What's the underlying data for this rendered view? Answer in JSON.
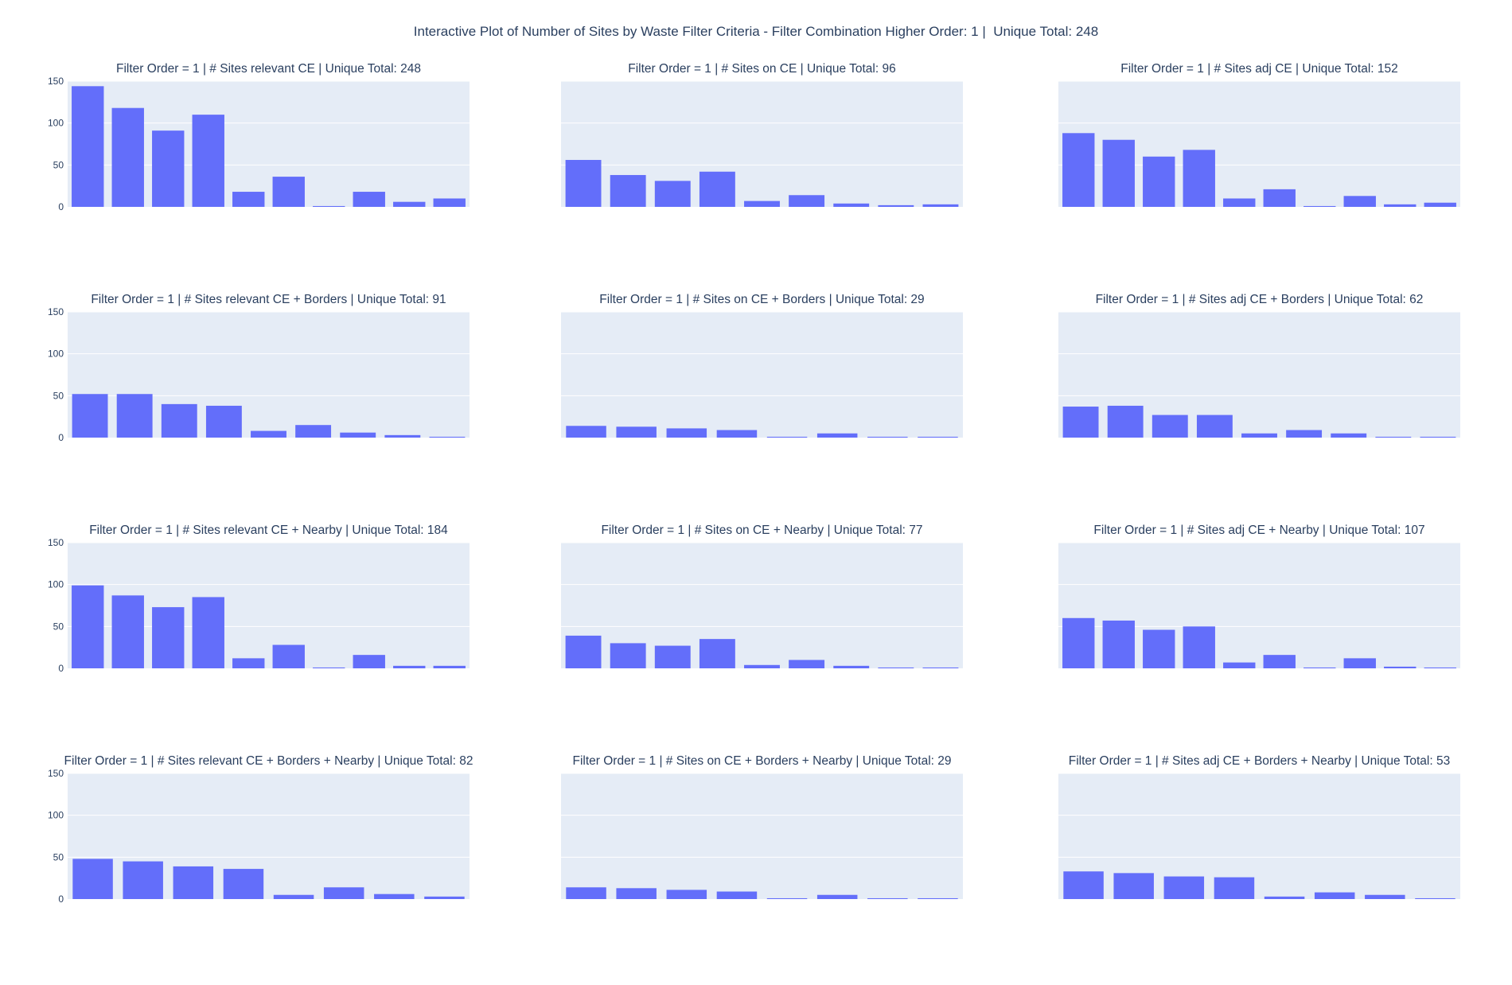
{
  "title": "Interactive Plot of Number of Sites by Waste Filter Criteria - Filter Combination Higher Order: 1 |  Unique Total: 248",
  "colors": {
    "bar": "#636efa",
    "plot_bg": "#e5ecf6",
    "grid": "#ffffff",
    "text": "#2a3f5f"
  },
  "chart_data": [
    {
      "type": "bar",
      "title": "Filter Order = 1 | # Sites relevant CE | Unique Total: 248",
      "ylim": [
        0,
        150
      ],
      "y_ticks": [
        "0",
        "50",
        "100",
        "150"
      ],
      "show_y_ticks": true,
      "grid": true,
      "values": [
        144,
        118,
        91,
        110,
        18,
        36,
        1,
        18,
        6,
        10
      ]
    },
    {
      "type": "bar",
      "title": "Filter Order = 1 | # Sites on CE | Unique Total: 96",
      "ylim": [
        0,
        150
      ],
      "y_ticks": [
        "0",
        "50",
        "100",
        "150"
      ],
      "show_y_ticks": false,
      "grid": true,
      "values": [
        56,
        38,
        31,
        42,
        7,
        14,
        4,
        2,
        3
      ]
    },
    {
      "type": "bar",
      "title": "Filter Order = 1 | # Sites adj CE | Unique Total: 152",
      "ylim": [
        0,
        150
      ],
      "y_ticks": [
        "0",
        "50",
        "100",
        "150"
      ],
      "show_y_ticks": false,
      "grid": true,
      "values": [
        88,
        80,
        60,
        68,
        10,
        21,
        1,
        13,
        3,
        5
      ]
    },
    {
      "type": "bar",
      "title": "Filter Order = 1 | # Sites relevant CE + Borders | Unique Total: 91",
      "ylim": [
        0,
        150
      ],
      "y_ticks": [
        "0",
        "50",
        "100",
        "150"
      ],
      "show_y_ticks": true,
      "grid": true,
      "values": [
        52,
        52,
        40,
        38,
        8,
        15,
        6,
        3,
        1
      ]
    },
    {
      "type": "bar",
      "title": "Filter Order = 1 | # Sites on CE + Borders | Unique Total: 29",
      "ylim": [
        0,
        150
      ],
      "y_ticks": [
        "0",
        "50",
        "100",
        "150"
      ],
      "show_y_ticks": false,
      "grid": true,
      "values": [
        14,
        13,
        11,
        9,
        1,
        5,
        1,
        1
      ]
    },
    {
      "type": "bar",
      "title": "Filter Order = 1 | # Sites adj CE + Borders | Unique Total: 62",
      "ylim": [
        0,
        150
      ],
      "y_ticks": [
        "0",
        "50",
        "100",
        "150"
      ],
      "show_y_ticks": false,
      "grid": true,
      "values": [
        37,
        38,
        27,
        27,
        5,
        9,
        5,
        1,
        1
      ]
    },
    {
      "type": "bar",
      "title": "Filter Order = 1 | # Sites relevant CE + Nearby | Unique Total: 184",
      "ylim": [
        0,
        150
      ],
      "y_ticks": [
        "0",
        "50",
        "100",
        "150"
      ],
      "show_y_ticks": true,
      "grid": true,
      "values": [
        99,
        87,
        73,
        85,
        12,
        28,
        1,
        16,
        3,
        3
      ]
    },
    {
      "type": "bar",
      "title": "Filter Order = 1 | # Sites on CE + Nearby | Unique Total: 77",
      "ylim": [
        0,
        150
      ],
      "y_ticks": [
        "0",
        "50",
        "100",
        "150"
      ],
      "show_y_ticks": false,
      "grid": true,
      "values": [
        39,
        30,
        27,
        35,
        4,
        10,
        3,
        1,
        1
      ]
    },
    {
      "type": "bar",
      "title": "Filter Order = 1 | # Sites adj CE + Nearby | Unique Total: 107",
      "ylim": [
        0,
        150
      ],
      "y_ticks": [
        "0",
        "50",
        "100",
        "150"
      ],
      "show_y_ticks": false,
      "grid": true,
      "values": [
        60,
        57,
        46,
        50,
        7,
        16,
        1,
        12,
        2,
        1
      ]
    },
    {
      "type": "bar",
      "title": "Filter Order = 1 | # Sites relevant CE + Borders + Nearby | Unique Total: 82",
      "ylim": [
        0,
        150
      ],
      "y_ticks": [
        "0",
        "50",
        "100",
        "150"
      ],
      "show_y_ticks": true,
      "grid": true,
      "values": [
        48,
        45,
        39,
        36,
        5,
        14,
        6,
        3
      ]
    },
    {
      "type": "bar",
      "title": "Filter Order = 1 | # Sites on CE + Borders + Nearby | Unique Total: 29",
      "ylim": [
        0,
        150
      ],
      "y_ticks": [
        "0",
        "50",
        "100",
        "150"
      ],
      "show_y_ticks": false,
      "grid": true,
      "values": [
        14,
        13,
        11,
        9,
        1,
        5,
        1,
        1
      ]
    },
    {
      "type": "bar",
      "title": "Filter Order = 1 | # Sites adj CE + Borders + Nearby | Unique Total: 53",
      "ylim": [
        0,
        150
      ],
      "y_ticks": [
        "0",
        "50",
        "100",
        "150"
      ],
      "show_y_ticks": false,
      "grid": true,
      "values": [
        33,
        31,
        27,
        26,
        3,
        8,
        5,
        1
      ]
    }
  ]
}
